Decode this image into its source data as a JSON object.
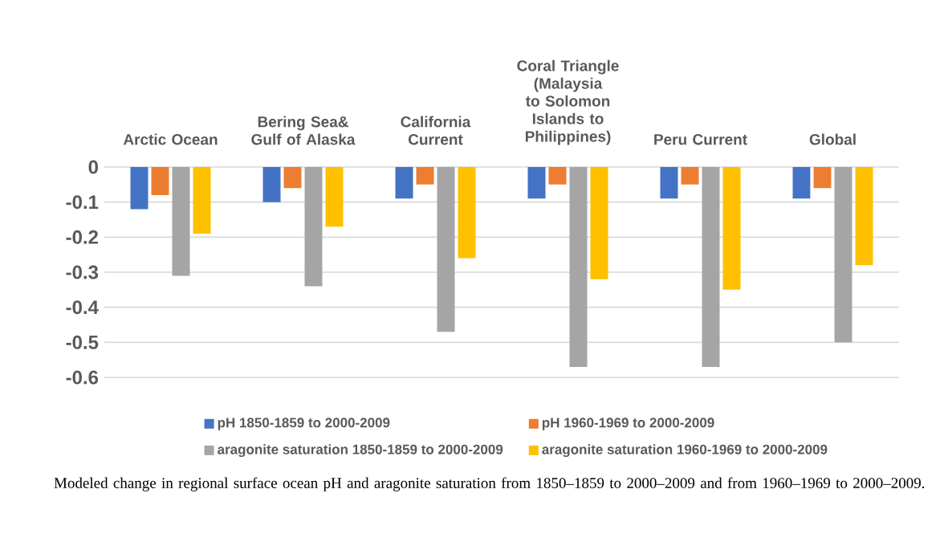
{
  "chart_data": {
    "type": "bar",
    "categories": [
      "Arctic Ocean",
      "Bering Sea& Gulf of Alaska",
      "California Current",
      "Coral Triangle (Malaysia to Solomon Islands to Philippines)",
      "Peru Current",
      "Global"
    ],
    "series": [
      {
        "name": "pH 1850-1859 to 2000-2009",
        "color": "#4472c4",
        "values": [
          -0.12,
          -0.1,
          -0.09,
          -0.09,
          -0.09,
          -0.09
        ]
      },
      {
        "name": "pH 1960-1969 to 2000-2009",
        "color": "#ed7d31",
        "values": [
          -0.08,
          -0.06,
          -0.05,
          -0.05,
          -0.05,
          -0.06
        ]
      },
      {
        "name": "aragonite saturation 1850-1859 to 2000-2009",
        "color": "#a5a5a5",
        "values": [
          -0.31,
          -0.34,
          -0.47,
          -0.57,
          -0.57,
          -0.5
        ]
      },
      {
        "name": "aragonite saturation 1960-1969 to 2000-2009",
        "color": "#ffc000",
        "values": [
          -0.19,
          -0.17,
          -0.26,
          -0.32,
          -0.35,
          -0.28
        ]
      }
    ],
    "ylim": [
      -0.6,
      0
    ],
    "yticks": [
      0,
      -0.1,
      -0.2,
      -0.3,
      -0.4,
      -0.5,
      -0.6
    ],
    "grid": "y",
    "legend": "bottom",
    "annotations": [
      "Modeled change in regional surface ocean pH and aragonite saturation from 1850–1859 to 2000–2009 and from 1960–1969 to 2000–2009."
    ]
  }
}
